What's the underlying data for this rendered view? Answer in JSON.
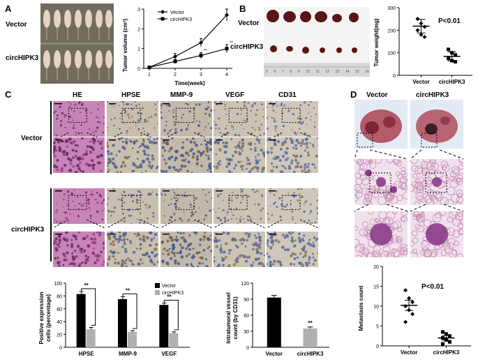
{
  "panels": {
    "a": "A",
    "b": "B",
    "c": "C",
    "d": "D"
  },
  "panel_a": {
    "row_labels": [
      "Vector",
      "circHIPK3"
    ],
    "chart": {
      "ylabel": "Tumor volume (cm³)",
      "xlabel": "Time(week)",
      "legend": [
        "Vector",
        "circHIPK3"
      ],
      "xticks": [
        "1",
        "2",
        "3",
        "4"
      ],
      "yticks": [
        "0",
        "1",
        "2",
        "3"
      ],
      "stars": "**"
    }
  },
  "panel_b": {
    "row_labels": [
      "Vector",
      "circHIPK3"
    ],
    "ruler": [
      "5",
      "6",
      "7",
      "8",
      "9",
      "10",
      "11",
      "12",
      "13",
      "14",
      "15",
      "16"
    ],
    "chart": {
      "ylabel": "Tumor weight(mg)",
      "yticks": [
        "0",
        "100",
        "200",
        "300"
      ],
      "xticks": [
        "Vector",
        "circHIPK3"
      ],
      "pvalue": "P<0.01"
    }
  },
  "panel_c": {
    "col_labels": [
      "HE",
      "HPSE",
      "MMP-9",
      "VEGF",
      "CD31"
    ],
    "row_labels": [
      "Vector",
      "circHIPK3"
    ],
    "bar": {
      "ylabel1": "Positive expression",
      "ylabel2": "cells (percentage)",
      "categories": [
        "HPSE",
        "MMP-9",
        "VEGF"
      ],
      "legend": [
        "Vector",
        "circHIPK3"
      ],
      "yticks": [
        "0",
        "20",
        "40",
        "60",
        "80",
        "100"
      ],
      "stars": "**"
    },
    "bar2": {
      "ylabel1": "Intratumoral vessel",
      "ylabel2": "count (by CD31)",
      "categories": [
        "Vector",
        "circHIPK3"
      ],
      "yticks": [
        "0",
        "30",
        "60",
        "90",
        "120"
      ],
      "stars": "**"
    }
  },
  "panel_d": {
    "col_labels": [
      "Vector",
      "circHIPK3"
    ],
    "chart": {
      "ylabel": "Metastasis count",
      "yticks": [
        "0",
        "5",
        "10",
        "15",
        "20"
      ],
      "xticks": [
        "Vector",
        "circHIPK3"
      ],
      "pvalue": "P<0.01"
    }
  },
  "chart_data": [
    {
      "type": "line",
      "x": [
        1,
        2,
        3,
        4
      ],
      "series": [
        {
          "name": "Vector",
          "values": [
            0.05,
            0.6,
            1.3,
            2.7
          ],
          "err": [
            0.02,
            0.15,
            0.2,
            0.3
          ]
        },
        {
          "name": "circHIPK3",
          "values": [
            0.05,
            0.35,
            0.65,
            1.0
          ],
          "err": [
            0.02,
            0.1,
            0.15,
            0.2
          ]
        }
      ],
      "ylabel": "Tumor volume (cm³)",
      "xlabel": "Time(week)",
      "ylim": [
        0,
        3
      ]
    },
    {
      "type": "scatter",
      "categories": [
        "Vector",
        "circHIPK3"
      ],
      "series": [
        {
          "name": "Vector",
          "values": [
            250,
            230,
            215,
            200,
            180,
            170
          ],
          "mean": 218,
          "sem": 30
        },
        {
          "name": "circHIPK3",
          "values": [
            115,
            100,
            90,
            75,
            65,
            60
          ],
          "mean": 84,
          "sem": 20
        }
      ],
      "ylabel": "Tumor weight(mg)",
      "ylim": [
        0,
        300
      ]
    },
    {
      "type": "bar",
      "categories": [
        "HPSE",
        "MMP-9",
        "VEGF"
      ],
      "series": [
        {
          "name": "Vector",
          "values": [
            83,
            75,
            66
          ],
          "err": [
            4,
            4,
            3
          ]
        },
        {
          "name": "circHIPK3",
          "values": [
            28,
            24,
            22
          ],
          "err": [
            3,
            2,
            2
          ]
        }
      ],
      "ylabel": "Positive expression cells (percentage)",
      "ylim": [
        0,
        100
      ]
    },
    {
      "type": "bar",
      "categories": [
        "Vector",
        "circHIPK3"
      ],
      "values": [
        93,
        35
      ],
      "err": [
        4,
        3
      ],
      "ylabel": "Intratumoral vessel count (by CD31)",
      "ylim": [
        0,
        120
      ]
    },
    {
      "type": "scatter",
      "categories": [
        "Vector",
        "circHIPK3"
      ],
      "series": [
        {
          "name": "Vector",
          "values": [
            14,
            12,
            11,
            10,
            9,
            8,
            6
          ],
          "mean": 10.2,
          "sem": 1.3
        },
        {
          "name": "circHIPK3",
          "values": [
            3.5,
            3,
            2.5,
            2,
            1.5,
            1,
            0.5
          ],
          "mean": 2.0,
          "sem": 0.6
        }
      ],
      "ylabel": "Metastasis count",
      "ylim": [
        0,
        20
      ]
    }
  ],
  "colors": {
    "he": "#b0528f",
    "he_dark": "#7d2a70",
    "ihc": "#9a8a7a",
    "ihc_blue": "#5a6aa0",
    "ihc_brown": "#a08050",
    "mouse_bg": "#6d6a5a",
    "mouse_body": "#e8d8cc",
    "tumor": "#5a1818",
    "lung": "#b86070",
    "black": "#000000",
    "gray": "#b0b0b0"
  }
}
